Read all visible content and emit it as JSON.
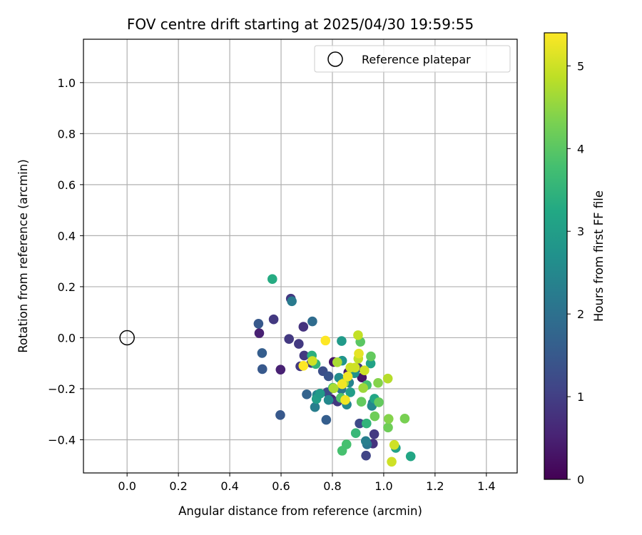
{
  "chart_data": {
    "type": "scatter",
    "title": "FOV centre drift starting at 2025/04/30 19:59:55",
    "xlabel": "Angular distance from reference (arcmin)",
    "ylabel": "Rotation from reference (arcmin)",
    "xlim": [
      -0.17,
      1.52
    ],
    "ylim": [
      -0.53,
      1.17
    ],
    "xticks": [
      "0.0",
      "0.2",
      "0.4",
      "0.6",
      "0.8",
      "1.0",
      "1.2",
      "1.4"
    ],
    "yticks": [
      "−0.4",
      "−0.2",
      "0.0",
      "0.2",
      "0.4",
      "0.6",
      "0.8",
      "1.0"
    ],
    "grid": true,
    "legend": {
      "placement": "upper right",
      "entries": [
        "Reference platepar"
      ]
    },
    "reference_point": {
      "x": 0.0,
      "y": 0.0
    },
    "colorbar": {
      "label": "Hours from first FF file",
      "colormap": "viridis",
      "range": [
        0,
        5.4
      ],
      "ticks": [
        "0",
        "1",
        "2",
        "3",
        "4",
        "5"
      ]
    },
    "points": [
      {
        "x": 0.515,
        "y": 0.018,
        "c": 0.5
      },
      {
        "x": 0.598,
        "y": -0.125,
        "c": 0.5
      },
      {
        "x": 0.805,
        "y": -0.095,
        "c": 0.3
      },
      {
        "x": 0.862,
        "y": -0.136,
        "c": 0.4
      },
      {
        "x": 0.915,
        "y": -0.156,
        "c": 0.3
      },
      {
        "x": 0.796,
        "y": -0.241,
        "c": 0.5
      },
      {
        "x": 0.571,
        "y": 0.072,
        "c": 0.9
      },
      {
        "x": 0.631,
        "y": -0.005,
        "c": 0.9
      },
      {
        "x": 0.687,
        "y": 0.043,
        "c": 0.8
      },
      {
        "x": 0.638,
        "y": 0.153,
        "c": 0.9
      },
      {
        "x": 0.669,
        "y": -0.024,
        "c": 0.9
      },
      {
        "x": 0.69,
        "y": -0.07,
        "c": 0.9
      },
      {
        "x": 0.675,
        "y": -0.112,
        "c": 0.9
      },
      {
        "x": 0.718,
        "y": -0.099,
        "c": 0.9
      },
      {
        "x": 0.82,
        "y": -0.25,
        "c": 0.9
      },
      {
        "x": 0.963,
        "y": -0.378,
        "c": 0.9
      },
      {
        "x": 0.958,
        "y": -0.415,
        "c": 0.8
      },
      {
        "x": 0.9,
        "y": -0.118,
        "c": 0.9
      },
      {
        "x": 0.931,
        "y": -0.462,
        "c": 1.1
      },
      {
        "x": 0.906,
        "y": -0.336,
        "c": 1.2
      },
      {
        "x": 0.763,
        "y": -0.131,
        "c": 1.3
      },
      {
        "x": 0.785,
        "y": -0.151,
        "c": 1.4
      },
      {
        "x": 0.78,
        "y": -0.214,
        "c": 1.2
      },
      {
        "x": 0.512,
        "y": 0.055,
        "c": 1.5
      },
      {
        "x": 0.526,
        "y": -0.06,
        "c": 1.6
      },
      {
        "x": 0.527,
        "y": -0.123,
        "c": 1.5
      },
      {
        "x": 0.597,
        "y": -0.303,
        "c": 1.5
      },
      {
        "x": 0.7,
        "y": -0.222,
        "c": 1.7
      },
      {
        "x": 0.776,
        "y": -0.322,
        "c": 1.6
      },
      {
        "x": 0.722,
        "y": 0.064,
        "c": 1.9
      },
      {
        "x": 0.642,
        "y": 0.143,
        "c": 2.2
      },
      {
        "x": 0.732,
        "y": -0.272,
        "c": 2.3
      },
      {
        "x": 0.74,
        "y": -0.224,
        "c": 2.4
      },
      {
        "x": 0.785,
        "y": -0.244,
        "c": 2.5
      },
      {
        "x": 0.835,
        "y": -0.202,
        "c": 2.1
      },
      {
        "x": 0.856,
        "y": -0.262,
        "c": 2.5
      },
      {
        "x": 0.865,
        "y": -0.176,
        "c": 2.4
      },
      {
        "x": 0.935,
        "y": -0.418,
        "c": 2.1
      },
      {
        "x": 0.957,
        "y": -0.256,
        "c": 2.1
      },
      {
        "x": 0.93,
        "y": -0.405,
        "c": 2.3
      },
      {
        "x": 0.954,
        "y": -0.267,
        "c": 2.5
      },
      {
        "x": 0.826,
        "y": -0.157,
        "c": 2.6
      },
      {
        "x": 0.886,
        "y": -0.139,
        "c": 2.7
      },
      {
        "x": 0.836,
        "y": -0.013,
        "c": 2.9
      },
      {
        "x": 0.738,
        "y": -0.24,
        "c": 3.0
      },
      {
        "x": 0.752,
        "y": -0.219,
        "c": 2.9
      },
      {
        "x": 0.838,
        "y": -0.09,
        "c": 2.8
      },
      {
        "x": 0.87,
        "y": -0.214,
        "c": 3.0
      },
      {
        "x": 0.949,
        "y": -0.101,
        "c": 3.1
      },
      {
        "x": 0.964,
        "y": -0.239,
        "c": 3.2
      },
      {
        "x": 1.047,
        "y": -0.432,
        "c": 3.1
      },
      {
        "x": 1.105,
        "y": -0.465,
        "c": 3.2
      },
      {
        "x": 0.566,
        "y": 0.23,
        "c": 3.3
      },
      {
        "x": 0.72,
        "y": -0.07,
        "c": 3.4
      },
      {
        "x": 0.735,
        "y": -0.103,
        "c": 3.5
      },
      {
        "x": 0.891,
        "y": -0.374,
        "c": 3.6
      },
      {
        "x": 0.933,
        "y": -0.336,
        "c": 3.5
      },
      {
        "x": 0.855,
        "y": -0.418,
        "c": 3.8
      },
      {
        "x": 0.838,
        "y": -0.443,
        "c": 3.8
      },
      {
        "x": 0.802,
        "y": -0.196,
        "c": 3.8
      },
      {
        "x": 0.934,
        "y": -0.186,
        "c": 3.8
      },
      {
        "x": 0.833,
        "y": -0.236,
        "c": 3.9
      },
      {
        "x": 0.909,
        "y": -0.016,
        "c": 4.0
      },
      {
        "x": 0.95,
        "y": -0.073,
        "c": 4.1
      },
      {
        "x": 0.913,
        "y": -0.251,
        "c": 4.1
      },
      {
        "x": 0.981,
        "y": -0.253,
        "c": 4.1
      },
      {
        "x": 0.965,
        "y": -0.308,
        "c": 4.2
      },
      {
        "x": 1.017,
        "y": -0.352,
        "c": 4.2
      },
      {
        "x": 1.082,
        "y": -0.317,
        "c": 4.3
      },
      {
        "x": 1.019,
        "y": -0.318,
        "c": 4.4
      },
      {
        "x": 0.978,
        "y": -0.177,
        "c": 4.4
      },
      {
        "x": 0.92,
        "y": -0.197,
        "c": 4.6
      },
      {
        "x": 0.845,
        "y": -0.178,
        "c": 4.6
      },
      {
        "x": 0.819,
        "y": -0.096,
        "c": 4.7
      },
      {
        "x": 1.016,
        "y": -0.16,
        "c": 4.8
      },
      {
        "x": 0.9,
        "y": 0.01,
        "c": 4.9
      },
      {
        "x": 0.901,
        "y": -0.082,
        "c": 4.9
      },
      {
        "x": 0.925,
        "y": -0.128,
        "c": 5.0
      },
      {
        "x": 0.888,
        "y": -0.117,
        "c": 5.0
      },
      {
        "x": 0.87,
        "y": -0.117,
        "c": 5.0
      },
      {
        "x": 1.031,
        "y": -0.486,
        "c": 5.0
      },
      {
        "x": 1.041,
        "y": -0.42,
        "c": 5.0
      },
      {
        "x": 0.722,
        "y": -0.091,
        "c": 5.0
      },
      {
        "x": 0.805,
        "y": -0.198,
        "c": 4.7
      },
      {
        "x": 0.903,
        "y": -0.062,
        "c": 5.2
      },
      {
        "x": 0.86,
        "y": -0.152,
        "c": 5.3
      },
      {
        "x": 0.838,
        "y": -0.182,
        "c": 5.3
      },
      {
        "x": 0.85,
        "y": -0.244,
        "c": 5.3
      },
      {
        "x": 0.687,
        "y": -0.11,
        "c": 5.4
      },
      {
        "x": 0.773,
        "y": -0.011,
        "c": 5.4
      }
    ]
  }
}
